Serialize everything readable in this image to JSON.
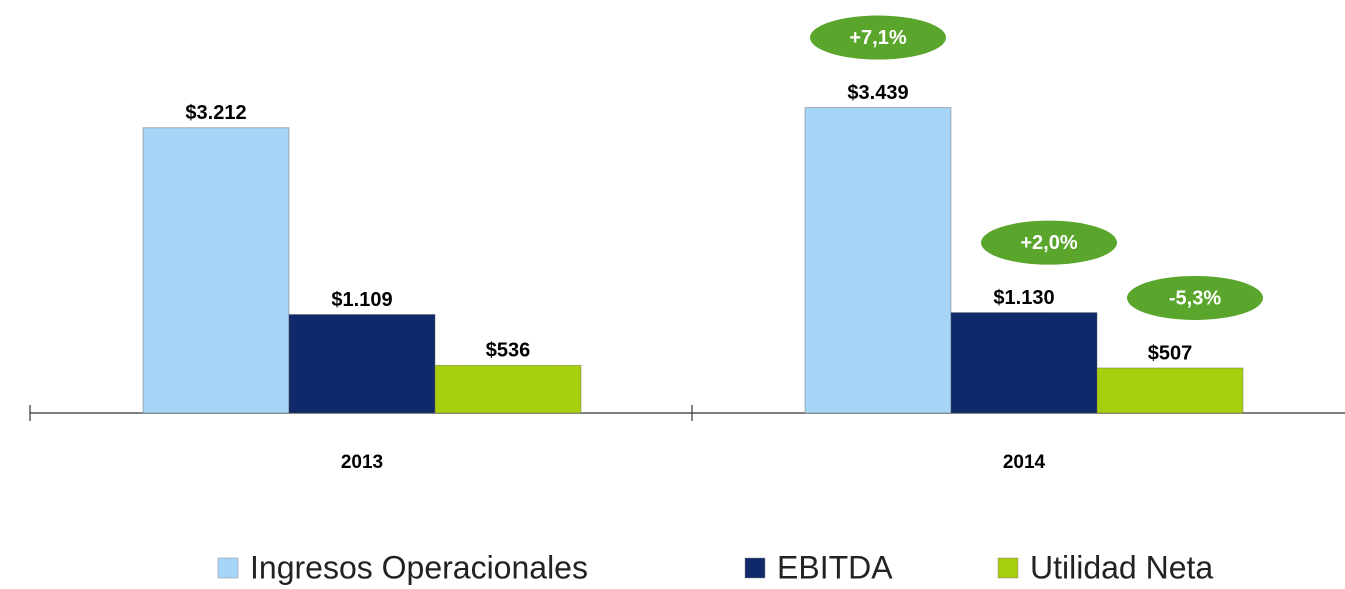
{
  "chart_data": {
    "type": "bar",
    "categories": [
      "2013",
      "2014"
    ],
    "series": [
      {
        "name": "Ingresos Operacionales",
        "color": "#a7d5f7",
        "values": [
          3212,
          3439
        ],
        "value_labels": [
          "$3.212",
          "$3.439"
        ]
      },
      {
        "name": "EBITDA",
        "color": "#10296b",
        "values": [
          1109,
          1130
        ],
        "value_labels": [
          "$1.109",
          "$1.130"
        ]
      },
      {
        "name": "Utilidad Neta",
        "color": "#a8cf0d",
        "values": [
          536,
          507
        ],
        "value_labels": [
          "$536",
          "$507"
        ]
      }
    ],
    "annotations": [
      "+7,1%",
      "+2,0%",
      "-5,3%"
    ],
    "ylim": [
      0,
      4650
    ],
    "legend": "bottom"
  }
}
